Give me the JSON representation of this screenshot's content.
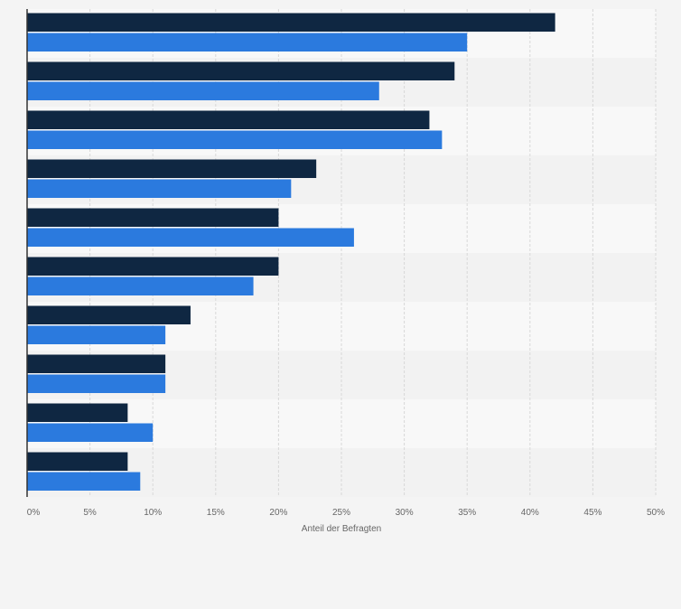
{
  "chart_data": {
    "type": "bar",
    "orientation": "horizontal",
    "categories": [
      "",
      "",
      "",
      "",
      "",
      "",
      "",
      "",
      "",
      ""
    ],
    "series": [
      {
        "color": "#0f2742",
        "values": [
          42,
          34,
          32,
          23,
          20,
          20,
          13,
          11,
          8,
          8
        ]
      },
      {
        "color": "#2b7ade",
        "values": [
          35,
          28,
          33,
          21,
          26,
          18,
          11,
          11,
          10,
          9
        ]
      }
    ],
    "xlabel": "Anteil der Befragten",
    "xlim": [
      0,
      50
    ],
    "x_ticks": [
      0,
      5,
      10,
      15,
      20,
      25,
      30,
      35,
      40,
      45,
      50
    ],
    "x_tick_labels": [
      "0%",
      "5%",
      "10%",
      "15%",
      "20%",
      "25%",
      "30%",
      "35%",
      "40%",
      "45%",
      "50%"
    ],
    "grid": true,
    "legend": "none"
  },
  "colors": {
    "page_background": "#f4f4f4",
    "band_light": "#f8f8f8",
    "band_dark": "#f2f2f2",
    "gridline": "#d8d8d8",
    "axis_line": "#333333",
    "tick_label": "#666666"
  }
}
